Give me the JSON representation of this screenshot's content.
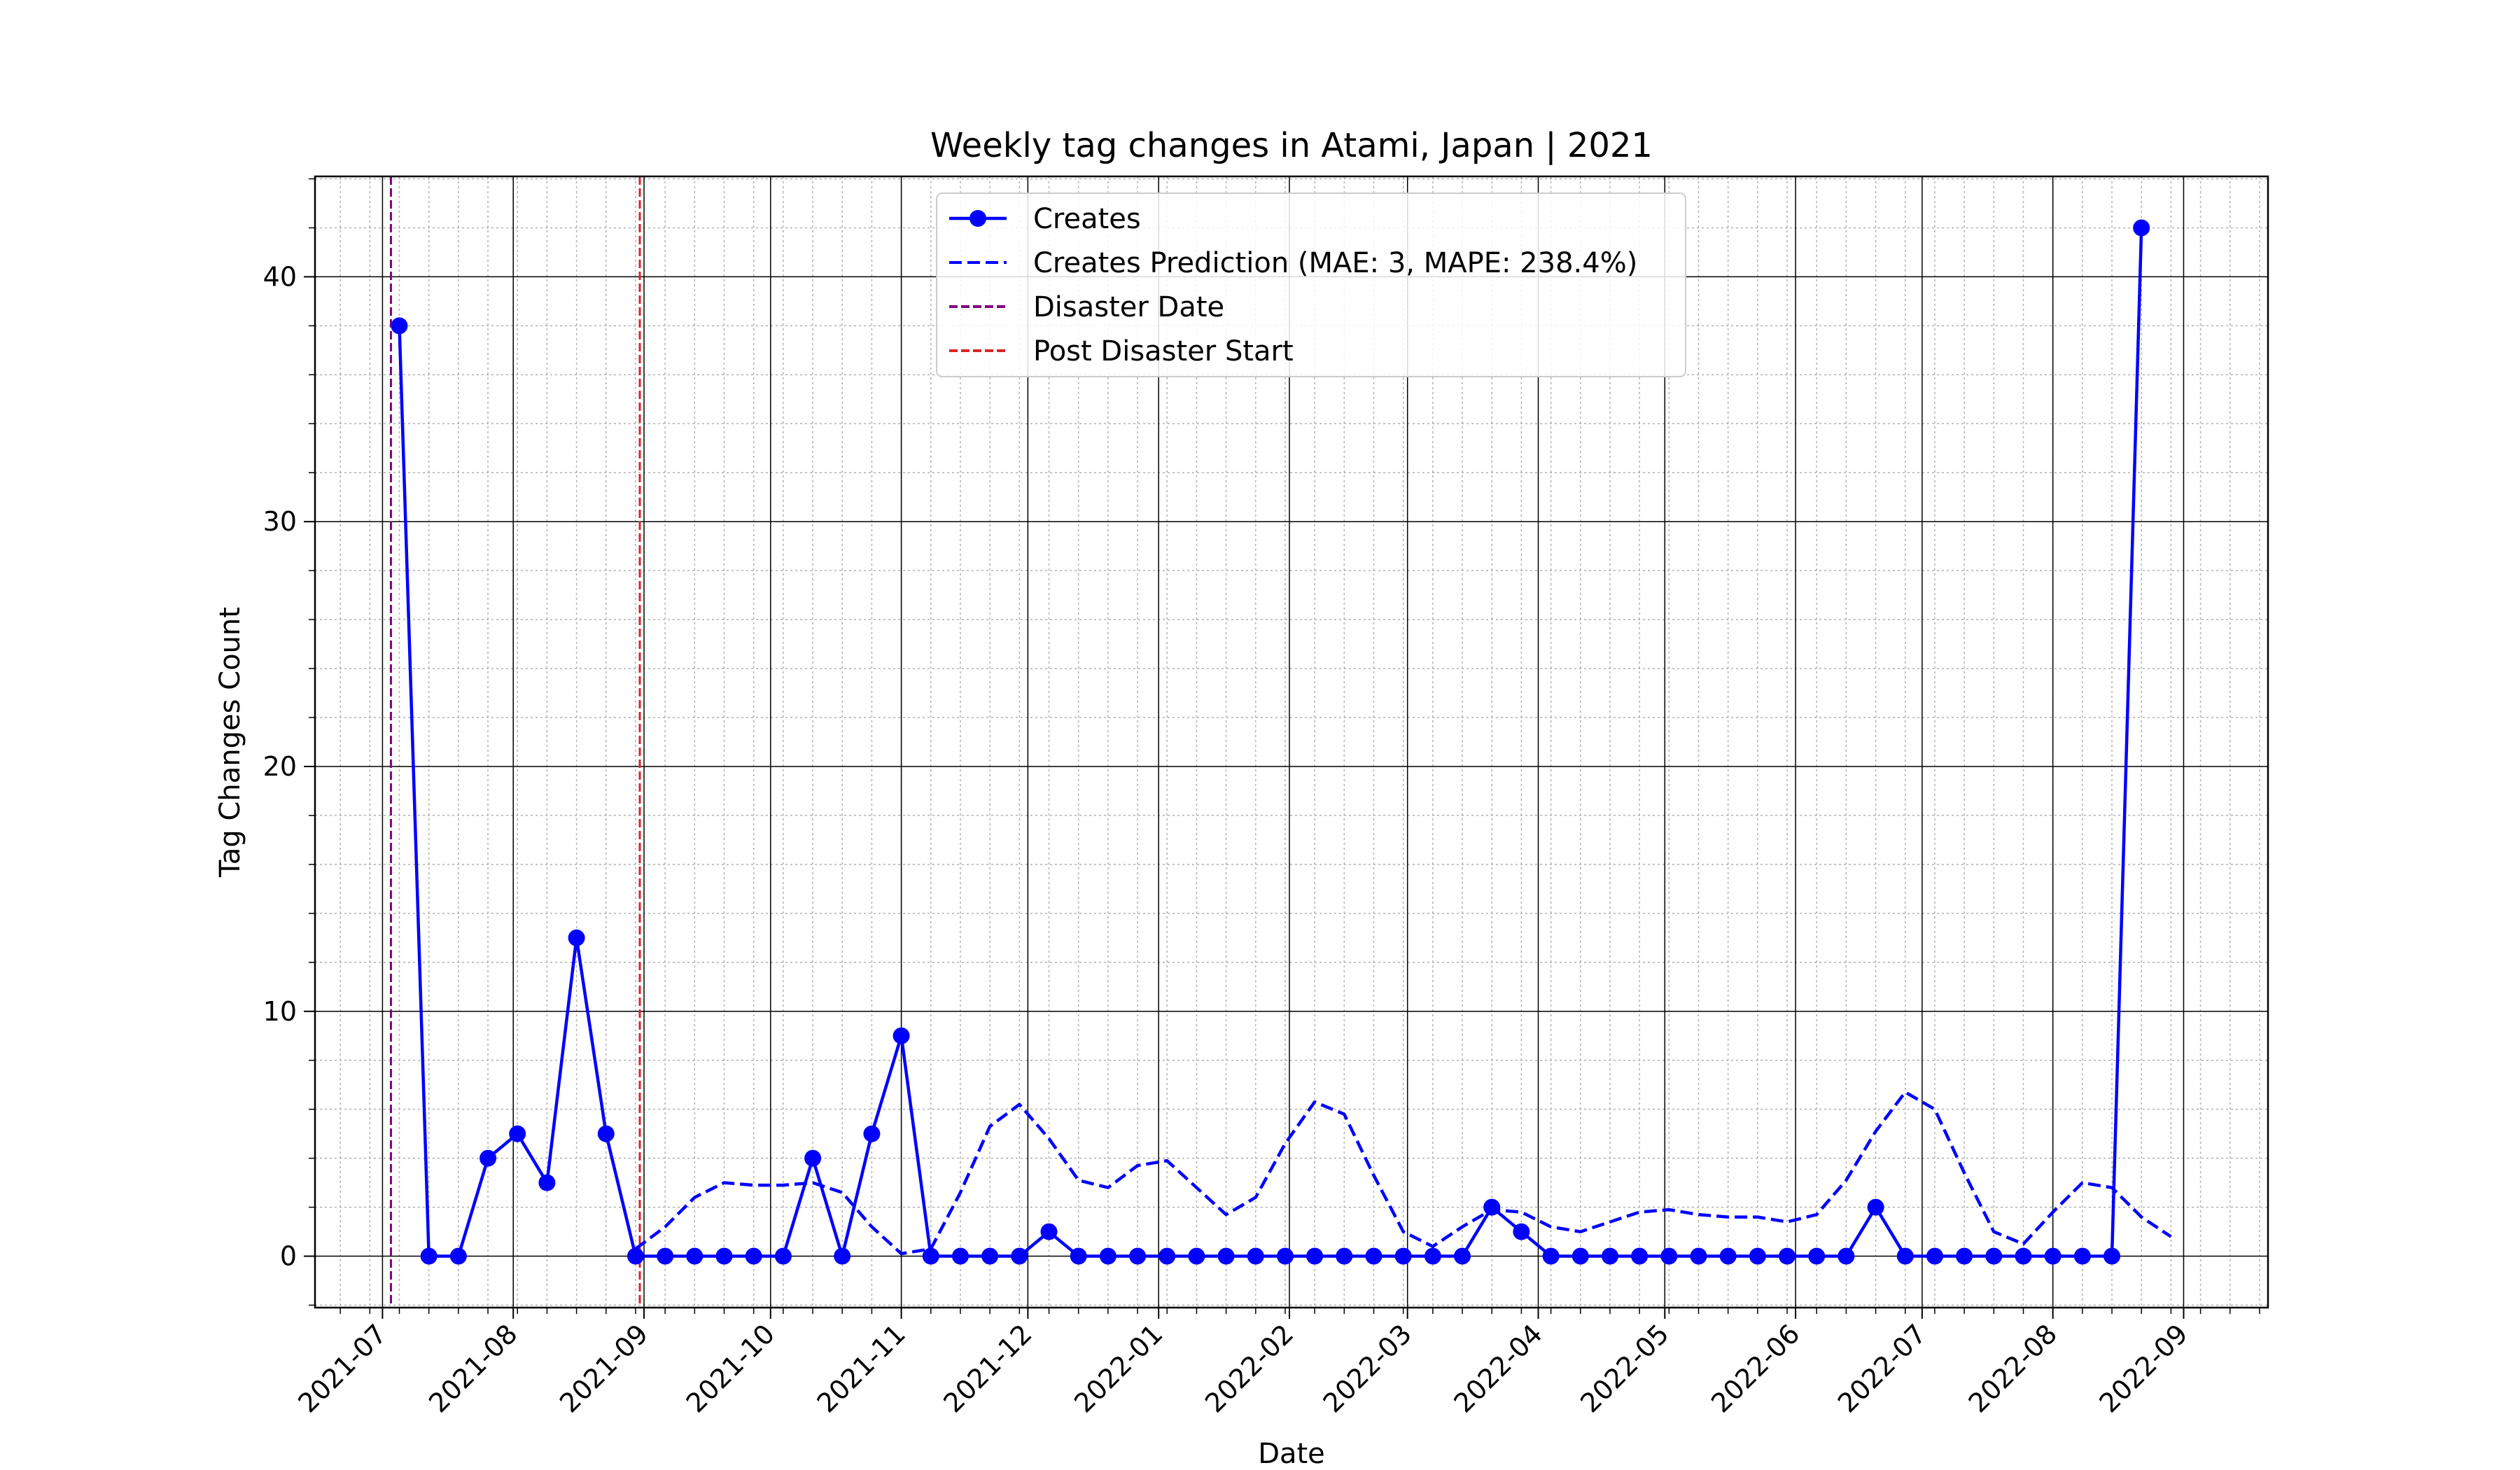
{
  "chart_data": {
    "type": "line",
    "title": "Weekly tag changes in Atami, Japan | 2021",
    "xlabel": "Date",
    "ylabel": "Tag Changes Count",
    "ylim": [
      -2.1,
      44.1
    ],
    "xlim": [
      "2021-06-15",
      "2022-09-21"
    ],
    "yticks": [
      0,
      10,
      20,
      30,
      40
    ],
    "xticks": [
      "2021-07-01",
      "2021-08-01",
      "2021-09-01",
      "2021-10-01",
      "2021-11-01",
      "2021-12-01",
      "2022-01-01",
      "2022-02-01",
      "2022-03-01",
      "2022-04-01",
      "2022-05-01",
      "2022-06-01",
      "2022-07-01",
      "2022-08-01",
      "2022-09-01"
    ],
    "xtick_labels": [
      "2021-07",
      "2021-08",
      "2021-09",
      "2021-10",
      "2021-11",
      "2021-12",
      "2022-01",
      "2022-02",
      "2022-03",
      "2022-04",
      "2022-05",
      "2022-06",
      "2022-07",
      "2022-08",
      "2022-09"
    ],
    "grid": true,
    "legend_position": "top-center",
    "colors": {
      "creates": "#0000ff",
      "prediction": "#0000ff",
      "disaster": "#800080",
      "post": "#d62728"
    },
    "series": [
      {
        "name": "Creates",
        "style": "solid-markers",
        "x": [
          "2021-07-05",
          "2021-07-12",
          "2021-07-19",
          "2021-07-26",
          "2021-08-02",
          "2021-08-09",
          "2021-08-16",
          "2021-08-23",
          "2021-08-30",
          "2021-09-06",
          "2021-09-13",
          "2021-09-20",
          "2021-09-27",
          "2021-10-04",
          "2021-10-11",
          "2021-10-18",
          "2021-10-25",
          "2021-11-01",
          "2021-11-08",
          "2021-11-15",
          "2021-11-22",
          "2021-11-29",
          "2021-12-06",
          "2021-12-13",
          "2021-12-20",
          "2021-12-27",
          "2022-01-03",
          "2022-01-10",
          "2022-01-17",
          "2022-01-24",
          "2022-01-31",
          "2022-02-07",
          "2022-02-14",
          "2022-02-21",
          "2022-02-28",
          "2022-03-07",
          "2022-03-14",
          "2022-03-21",
          "2022-03-28",
          "2022-04-04",
          "2022-04-11",
          "2022-04-18",
          "2022-04-25",
          "2022-05-02",
          "2022-05-09",
          "2022-05-16",
          "2022-05-23",
          "2022-05-30",
          "2022-06-06",
          "2022-06-13",
          "2022-06-20",
          "2022-06-27",
          "2022-07-04",
          "2022-07-11",
          "2022-07-18",
          "2022-07-25",
          "2022-08-01",
          "2022-08-08",
          "2022-08-15",
          "2022-08-22"
        ],
        "values": [
          38,
          0,
          0,
          4,
          5,
          3,
          13,
          5,
          0,
          0,
          0,
          0,
          0,
          0,
          4,
          0,
          5,
          9,
          0,
          0,
          0,
          0,
          1,
          0,
          0,
          0,
          0,
          0,
          0,
          0,
          0,
          0,
          0,
          0,
          0,
          0,
          0,
          2,
          1,
          0,
          0,
          0,
          0,
          0,
          0,
          0,
          0,
          0,
          0,
          0,
          2,
          0,
          0,
          0,
          0,
          0,
          0,
          0,
          0,
          42
        ]
      },
      {
        "name": "Creates Prediction (MAE: 3, MAPE: 238.4%)",
        "style": "dashed",
        "x": [
          "2021-08-30",
          "2021-09-06",
          "2021-09-13",
          "2021-09-20",
          "2021-09-27",
          "2021-10-04",
          "2021-10-11",
          "2021-10-18",
          "2021-10-25",
          "2021-11-01",
          "2021-11-08",
          "2021-11-15",
          "2021-11-22",
          "2021-11-29",
          "2021-12-06",
          "2021-12-13",
          "2021-12-20",
          "2021-12-27",
          "2022-01-03",
          "2022-01-10",
          "2022-01-17",
          "2022-01-24",
          "2022-01-31",
          "2022-02-07",
          "2022-02-14",
          "2022-02-21",
          "2022-02-28",
          "2022-03-07",
          "2022-03-14",
          "2022-03-21",
          "2022-03-28",
          "2022-04-04",
          "2022-04-11",
          "2022-04-18",
          "2022-04-25",
          "2022-05-02",
          "2022-05-09",
          "2022-05-16",
          "2022-05-23",
          "2022-05-30",
          "2022-06-06",
          "2022-06-13",
          "2022-06-20",
          "2022-06-27",
          "2022-07-04",
          "2022-07-11",
          "2022-07-18",
          "2022-07-25",
          "2022-08-01",
          "2022-08-08",
          "2022-08-15",
          "2022-08-22",
          "2022-08-29"
        ],
        "values": [
          0.3,
          1.2,
          2.4,
          3.0,
          2.9,
          2.9,
          3.0,
          2.6,
          1.2,
          0.1,
          0.3,
          2.6,
          5.3,
          6.2,
          4.8,
          3.1,
          2.8,
          3.7,
          3.9,
          2.8,
          1.7,
          2.4,
          4.6,
          6.3,
          5.8,
          3.3,
          1.0,
          0.4,
          1.2,
          1.9,
          1.8,
          1.2,
          1.0,
          1.4,
          1.8,
          1.9,
          1.7,
          1.6,
          1.6,
          1.4,
          1.7,
          3.1,
          5.1,
          6.7,
          6.0,
          3.4,
          1.0,
          0.5,
          1.8,
          3.0,
          2.8,
          1.6,
          0.8
        ]
      }
    ],
    "vlines": [
      {
        "name": "Disaster Date",
        "x": "2021-07-03"
      },
      {
        "name": "Post Disaster Start",
        "x": "2021-08-31"
      }
    ]
  }
}
